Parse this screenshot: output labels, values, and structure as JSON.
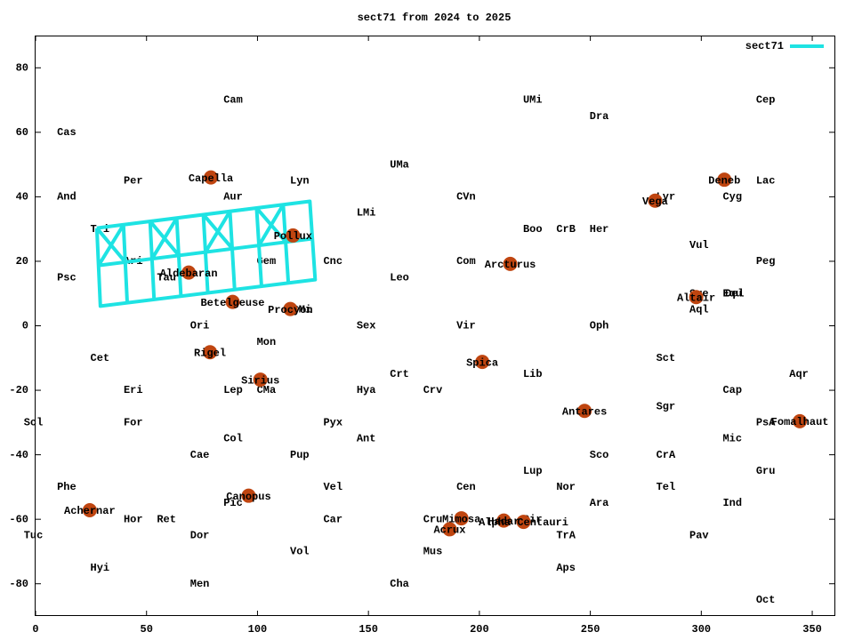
{
  "chart_data": {
    "type": "line",
    "title": "sect71 from 2024 to 2025",
    "xlim": [
      0,
      360
    ],
    "ylim": [
      -90,
      90
    ],
    "xticks": [
      0,
      50,
      100,
      150,
      200,
      250,
      300,
      350
    ],
    "yticks": [
      -80,
      -60,
      -40,
      -20,
      0,
      20,
      40,
      60,
      80
    ],
    "legend": "upper right",
    "series": [
      {
        "name": "sect71",
        "color": "#1ee3e3",
        "x": [
          27.6,
          123.6,
          126.0,
          29.2,
          27.6,
          null,
          28.4,
          124.8,
          null,
          39.6,
          41.3,
          null,
          51.6,
          53.4,
          null,
          63.6,
          65.5,
          null,
          75.6,
          77.6,
          null,
          87.6,
          89.7,
          null,
          99.6,
          101.8,
          null,
          111.6,
          113.9,
          null,
          27.6,
          40.5,
          null,
          28.4,
          39.6,
          null,
          51.6,
          64.6,
          null,
          52.5,
          63.6,
          null,
          75.6,
          88.7,
          null,
          76.6,
          87.6,
          null,
          99.6,
          112.8,
          null,
          100.7,
          111.6
        ],
        "values": [
          30.3,
          38.6,
          14.3,
          6.1,
          30.3,
          null,
          18.7,
          27.0,
          null,
          31.3,
          7.1,
          null,
          32.4,
          8.2,
          null,
          33.4,
          9.2,
          null,
          34.5,
          10.2,
          null,
          35.5,
          11.2,
          null,
          36.5,
          12.3,
          null,
          37.6,
          13.3,
          null,
          30.3,
          19.7,
          null,
          18.7,
          31.3,
          null,
          32.4,
          21.8,
          null,
          20.8,
          33.4,
          null,
          34.5,
          23.9,
          null,
          22.9,
          35.5,
          null,
          36.5,
          26.0,
          null,
          24.9,
          37.6
        ]
      }
    ],
    "star_color": "#bf4510",
    "stars": [
      {
        "name": "Capella",
        "x": 79,
        "y": 46
      },
      {
        "name": "Aldebaran",
        "x": 69,
        "y": 16.5
      },
      {
        "name": "Pollux",
        "x": 116,
        "y": 28
      },
      {
        "name": "Betelgeuse",
        "x": 88.8,
        "y": 7.4
      },
      {
        "name": "Procyon",
        "x": 114.8,
        "y": 5.2
      },
      {
        "name": "Rigel",
        "x": 78.6,
        "y": -8.2
      },
      {
        "name": "Sirius",
        "x": 101.3,
        "y": -16.7
      },
      {
        "name": "Canopus",
        "x": 96,
        "y": -52.7
      },
      {
        "name": "Achernar",
        "x": 24.4,
        "y": -57.2
      },
      {
        "name": "Arcturus",
        "x": 213.9,
        "y": 19.2
      },
      {
        "name": "Spica",
        "x": 201.3,
        "y": -11.2
      },
      {
        "name": "Antares",
        "x": 247.4,
        "y": -26.4
      },
      {
        "name": "Vega",
        "x": 279.2,
        "y": 38.8
      },
      {
        "name": "Deneb",
        "x": 310.4,
        "y": 45.3
      },
      {
        "name": "Altair",
        "x": 297.7,
        "y": 8.9
      },
      {
        "name": "Fomalhaut",
        "x": 344.4,
        "y": -29.6
      },
      {
        "name": "Mimosa",
        "x": 191.9,
        "y": -59.7
      },
      {
        "name": "Acrux",
        "x": 186.6,
        "y": -63.1
      },
      {
        "name": "Hadar",
        "x": 211,
        "y": -60.4
      },
      {
        "name": "Alpha Centauri",
        "x": 219.9,
        "y": -60.8
      }
    ],
    "labels": [
      {
        "text": "Cam",
        "x": 89,
        "y": 70
      },
      {
        "text": "UMi",
        "x": 224,
        "y": 70
      },
      {
        "text": "Cep",
        "x": 329,
        "y": 70
      },
      {
        "text": "Dra",
        "x": 254,
        "y": 65
      },
      {
        "text": "Cas",
        "x": 14,
        "y": 60
      },
      {
        "text": "UMa",
        "x": 164,
        "y": 50
      },
      {
        "text": "Per",
        "x": 44,
        "y": 45
      },
      {
        "text": "Lyn",
        "x": 119,
        "y": 45
      },
      {
        "text": "Lac",
        "x": 329,
        "y": 45
      },
      {
        "text": "And",
        "x": 14,
        "y": 40
      },
      {
        "text": "Aur",
        "x": 89,
        "y": 40
      },
      {
        "text": "CVn",
        "x": 194,
        "y": 40
      },
      {
        "text": "Lyr",
        "x": 284,
        "y": 40
      },
      {
        "text": "Cyg",
        "x": 314,
        "y": 40
      },
      {
        "text": "LMi",
        "x": 149,
        "y": 35
      },
      {
        "text": "Tri",
        "x": 29,
        "y": 30
      },
      {
        "text": "Boo",
        "x": 224,
        "y": 30
      },
      {
        "text": "CrB",
        "x": 239,
        "y": 30
      },
      {
        "text": "Her",
        "x": 254,
        "y": 30
      },
      {
        "text": "Vul",
        "x": 299,
        "y": 25
      },
      {
        "text": "Ari",
        "x": 44,
        "y": 20
      },
      {
        "text": "Gem",
        "x": 104,
        "y": 20
      },
      {
        "text": "Cnc",
        "x": 134,
        "y": 20
      },
      {
        "text": "Com",
        "x": 194,
        "y": 20
      },
      {
        "text": "Peg",
        "x": 329,
        "y": 20
      },
      {
        "text": "Psc",
        "x": 14,
        "y": 15
      },
      {
        "text": "Tau",
        "x": 59,
        "y": 15
      },
      {
        "text": "Leo",
        "x": 164,
        "y": 15
      },
      {
        "text": "Sge",
        "x": 299,
        "y": 10
      },
      {
        "text": "Equ",
        "x": 314,
        "y": 10
      },
      {
        "text": "Del",
        "x": 315,
        "y": 10
      },
      {
        "text": "CMi",
        "x": 120,
        "y": 5
      },
      {
        "text": "Aql",
        "x": 299,
        "y": 5
      },
      {
        "text": "Ori",
        "x": 74,
        "y": 0
      },
      {
        "text": "Sex",
        "x": 149,
        "y": 0
      },
      {
        "text": "Vir",
        "x": 194,
        "y": 0
      },
      {
        "text": "Oph",
        "x": 254,
        "y": 0
      },
      {
        "text": "Mon",
        "x": 104,
        "y": -5
      },
      {
        "text": "Cet",
        "x": 29,
        "y": -10
      },
      {
        "text": "Sct",
        "x": 284,
        "y": -10
      },
      {
        "text": "Crt",
        "x": 164,
        "y": -15
      },
      {
        "text": "Lib",
        "x": 224,
        "y": -15
      },
      {
        "text": "Aqr",
        "x": 344,
        "y": -15
      },
      {
        "text": "Eri",
        "x": 44,
        "y": -20
      },
      {
        "text": "Lep",
        "x": 89,
        "y": -20
      },
      {
        "text": "CMa",
        "x": 104,
        "y": -20
      },
      {
        "text": "Hya",
        "x": 149,
        "y": -20
      },
      {
        "text": "Crv",
        "x": 179,
        "y": -20
      },
      {
        "text": "Cap",
        "x": 314,
        "y": -20
      },
      {
        "text": "Sgr",
        "x": 284,
        "y": -25
      },
      {
        "text": "Scl",
        "x": -1,
        "y": -30
      },
      {
        "text": "For",
        "x": 44,
        "y": -30
      },
      {
        "text": "Pyx",
        "x": 134,
        "y": -30
      },
      {
        "text": "PsA",
        "x": 329,
        "y": -30
      },
      {
        "text": "Col",
        "x": 89,
        "y": -35
      },
      {
        "text": "Ant",
        "x": 149,
        "y": -35
      },
      {
        "text": "Mic",
        "x": 314,
        "y": -35
      },
      {
        "text": "Cae",
        "x": 74,
        "y": -40
      },
      {
        "text": "Pup",
        "x": 119,
        "y": -40
      },
      {
        "text": "Sco",
        "x": 254,
        "y": -40
      },
      {
        "text": "CrA",
        "x": 284,
        "y": -40
      },
      {
        "text": "Lup",
        "x": 224,
        "y": -45
      },
      {
        "text": "Gru",
        "x": 329,
        "y": -45
      },
      {
        "text": "Phe",
        "x": 14,
        "y": -50
      },
      {
        "text": "Vel",
        "x": 134,
        "y": -50
      },
      {
        "text": "Cen",
        "x": 194,
        "y": -50
      },
      {
        "text": "Nor",
        "x": 239,
        "y": -50
      },
      {
        "text": "Tel",
        "x": 284,
        "y": -50
      },
      {
        "text": "Pic",
        "x": 89,
        "y": -55
      },
      {
        "text": "Ara",
        "x": 254,
        "y": -55
      },
      {
        "text": "Ind",
        "x": 314,
        "y": -55
      },
      {
        "text": "Hor",
        "x": 44,
        "y": -60
      },
      {
        "text": "Ret",
        "x": 59,
        "y": -60
      },
      {
        "text": "Car",
        "x": 134,
        "y": -60
      },
      {
        "text": "Cru",
        "x": 179,
        "y": -60
      },
      {
        "text": "Cir",
        "x": 224,
        "y": -60
      },
      {
        "text": "Tuc",
        "x": -1,
        "y": -65
      },
      {
        "text": "Dor",
        "x": 74,
        "y": -65
      },
      {
        "text": "TrA",
        "x": 239,
        "y": -65
      },
      {
        "text": "Pav",
        "x": 299,
        "y": -65
      },
      {
        "text": "Vol",
        "x": 119,
        "y": -70
      },
      {
        "text": "Mus",
        "x": 179,
        "y": -70
      },
      {
        "text": "Hyi",
        "x": 29,
        "y": -75
      },
      {
        "text": "Aps",
        "x": 239,
        "y": -75
      },
      {
        "text": "Men",
        "x": 74,
        "y": -80
      },
      {
        "text": "Cha",
        "x": 164,
        "y": -80
      },
      {
        "text": "Oct",
        "x": 329,
        "y": -85
      }
    ]
  }
}
